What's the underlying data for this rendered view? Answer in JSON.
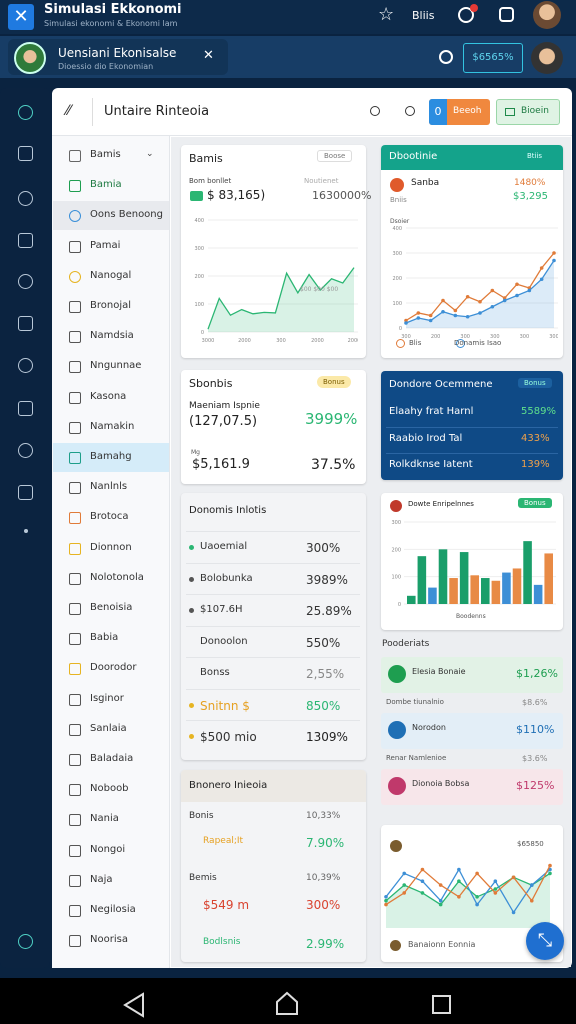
{
  "app_bar": {
    "title": "Simulasi Ekkonomi",
    "subtitle": "Simulasi ekonomi & Ekonomi lam",
    "status": "Bliis"
  },
  "header": {
    "title": "Uensiani Ekonisalse",
    "subtitle": "Dioessio dio Ekonomian",
    "button": "$6565%"
  },
  "toolbar": {
    "title": "Untaire Rinteoia",
    "count": "0",
    "button_primary": "Beeoh",
    "button_secondary": "Bioein"
  },
  "sidebar": {
    "items": [
      "Bamis",
      "Bamia",
      "Oons Benoong",
      "Pamai",
      "Nanogal",
      "Bronojal",
      "Namdsia",
      "Nngunnae",
      "Kasona",
      "Namakin",
      "Bamahg",
      "Nanlnls",
      "Brotoca",
      "Dionnon",
      "Nolotonola",
      "Benoisia",
      "Babia",
      "Doorodor",
      "Isginor",
      "Sanlaia",
      "Baladaia",
      "Noboob",
      "Nania",
      "Nongoi",
      "Naja",
      "Negilosia",
      "Noorisa"
    ]
  },
  "cards": {
    "balance": {
      "title": "Bamis",
      "badge": "Boose",
      "label": "Bom bonllet",
      "note": "Noutienet",
      "value": "$ 83,165)",
      "change": "1630000%",
      "chart": {
        "type": "line",
        "series": [
          {
            "color": "#2bb673",
            "area": true,
            "values": [
              10,
              120,
              60,
              80,
              65,
              70,
              68,
              210,
              140,
              205,
              150,
              190,
              175,
              230
            ]
          }
        ],
        "ylim": [
          0,
          400
        ],
        "yticks": [
          0,
          100,
          200,
          300,
          400
        ],
        "xticks": [
          "3000",
          "2000",
          "300",
          "2000",
          "2000"
        ],
        "annotation": "$00 $00 $00"
      }
    },
    "trend": {
      "title": "Dbootinie",
      "badge": "Btiis",
      "name": "Sanba",
      "sub": "Bniis",
      "change": "1480%",
      "value": "$3,295",
      "note": "Dsoier",
      "chart": {
        "type": "line",
        "series": [
          {
            "name": "Blis",
            "color": "#e07b39",
            "values": [
              30,
              60,
              50,
              110,
              70,
              125,
              105,
              150,
              120,
              175,
              160,
              240,
              300
            ]
          },
          {
            "name": "Donamis Isao",
            "color": "#3d8fd6",
            "area": true,
            "values": [
              20,
              40,
              30,
              65,
              50,
              45,
              60,
              85,
              110,
              130,
              150,
              195,
              270
            ]
          }
        ],
        "ylim": [
          0,
          400
        ],
        "yticks": [
          0,
          100,
          200,
          300,
          400
        ],
        "xticks": [
          "300",
          "200",
          "300",
          "300",
          "300",
          "300"
        ]
      }
    },
    "summary": {
      "title": "Sbonbis",
      "badge": "Bonus",
      "label": "Maeniam Ispnie",
      "value": "(127,07.5)",
      "change": "3999%",
      "unit": "Mg",
      "amount": "$5,161.9",
      "ratio": "37.5%"
    },
    "overview": {
      "title": "Dondore Ocemmene",
      "badge": "Bonus",
      "rows": [
        {
          "label": "Elaahy frat Harnl",
          "value": "5589%"
        },
        {
          "label": "Raabio Irod Tal",
          "value": "433%"
        },
        {
          "label": "Rolkdknse Iatent",
          "value": "139%"
        }
      ]
    },
    "indicators": {
      "title": "Donomis Inlotis",
      "rows": [
        {
          "label": "Uaoemial",
          "value": "300%"
        },
        {
          "label": "Bolobunka",
          "value": "3989%"
        },
        {
          "label": "$107.6H",
          "value": "25.89%"
        },
        {
          "label": "Donoolon",
          "value": "550%"
        },
        {
          "label": "Bonss",
          "value": "2,55%"
        },
        {
          "label": "Snitnn $",
          "value": "850%"
        },
        {
          "label": "$500 mio",
          "value": "1309%"
        }
      ]
    },
    "bars": {
      "title": "Dowte Enripelnnes",
      "badge": "Bonus",
      "xlabel": "Boodenns",
      "chart": {
        "type": "bar",
        "values": [
          30,
          175,
          60,
          200,
          95,
          190,
          105,
          95,
          85,
          115,
          130,
          230,
          70,
          185
        ],
        "colors": [
          "#1a9e6a",
          "#1a9e6a",
          "#3d8fd6",
          "#1a9e6a",
          "#e88a45",
          "#1a9e6a",
          "#e88a45",
          "#1a9e6a",
          "#e88a45",
          "#3d8fd6",
          "#e88a45",
          "#1a9e6a",
          "#3d8fd6",
          "#e88a45"
        ],
        "ylim": [
          0,
          300
        ],
        "yticks": [
          0,
          100,
          200,
          300
        ]
      }
    },
    "products": {
      "title": "Pooderiats",
      "items": [
        {
          "name": "Elesia Bonaie",
          "value": "$1,26%",
          "note": "Dombe tiunalnio",
          "note_value": "$8.6%"
        },
        {
          "name": "Norodon",
          "value": "$110%",
          "note": "Renar Namlenioe",
          "note_value": "$3.6%"
        },
        {
          "name": "Dionoia Bobsa",
          "value": "$125%"
        }
      ]
    },
    "income": {
      "title": "Bnonero Inieoia",
      "rows": [
        {
          "label": "Bonis",
          "value": "10,33%"
        },
        {
          "label": "Rapeal;It",
          "value": "7.90%"
        },
        {
          "label": "Bemis",
          "value": "10,39%"
        },
        {
          "label": "$549 m",
          "value": "300%"
        },
        {
          "label": "Bodlsnis",
          "value": "2.99%"
        }
      ]
    },
    "lines": {
      "badge": "$65850",
      "legend": "Banaionn Eonnia",
      "chart": {
        "type": "line",
        "series": [
          {
            "color": "#2bb673",
            "area": true,
            "values": [
              35,
              55,
              45,
              30,
              60,
              40,
              50,
              65,
              55,
              70
            ]
          },
          {
            "color": "#3d8fd6",
            "values": [
              40,
              70,
              60,
              35,
              75,
              30,
              60,
              20,
              55,
              75
            ]
          },
          {
            "color": "#e07b39",
            "values": [
              30,
              45,
              75,
              55,
              40,
              70,
              45,
              65,
              35,
              80
            ]
          }
        ],
        "ylim": [
          0,
          100
        ]
      }
    }
  }
}
